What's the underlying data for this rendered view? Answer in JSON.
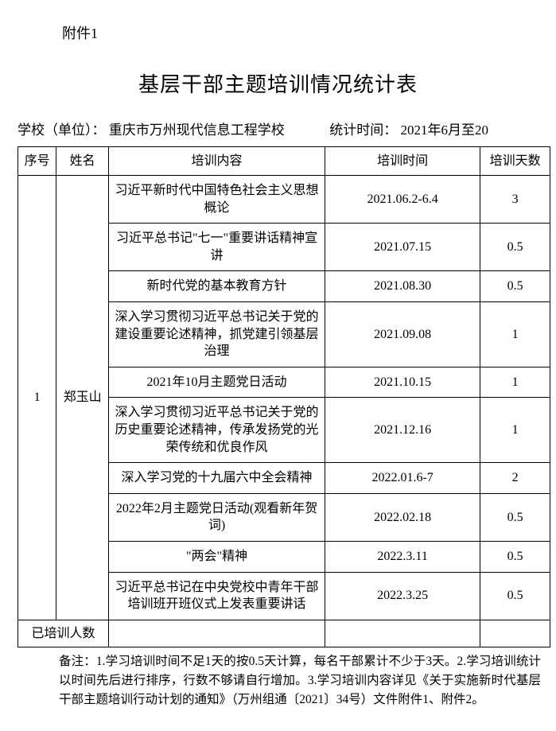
{
  "attachment_label": "附件1",
  "title": "基层干部主题培训情况统计表",
  "meta": {
    "school_label": "学校（单位）：",
    "school_value": "重庆市万州现代信息工程学校",
    "stat_time_label": "统计时间：",
    "stat_time_value": "2021年6月至20"
  },
  "table": {
    "headers": {
      "seq": "序号",
      "name": "姓名",
      "content": "培训内容",
      "time": "培训时间",
      "days": "培训天数"
    },
    "seq_value": "1",
    "name_value": "郑玉山",
    "rows": [
      {
        "content": "习近平新时代中国特色社会主义思想概论",
        "time": "2021.06.2-6.4",
        "days": "3"
      },
      {
        "content": "习近平总书记\"七一\"重要讲话精神宣讲",
        "time": "2021.07.15",
        "days": "0.5"
      },
      {
        "content": "新时代党的基本教育方针",
        "time": "2021.08.30",
        "days": "0.5"
      },
      {
        "content": "深入学习贯彻习近平总书记关于党的建设重要论述精神，抓党建引领基层治理",
        "time": "2021.09.08",
        "days": "1"
      },
      {
        "content": "2021年10月主题党日活动",
        "time": "2021.10.15",
        "days": "1"
      },
      {
        "content": "深入学习贯彻习近平总书记关于党的历史重要论述精神，传承发扬党的光荣传统和优良作风",
        "time": "2021.12.16",
        "days": "1"
      },
      {
        "content": "深入学习党的十九届六中全会精神",
        "time": "2022.01.6-7",
        "days": "2"
      },
      {
        "content": "2022年2月主题党日活动(观看新年贺词)",
        "time": "2022.02.18",
        "days": "0.5"
      },
      {
        "content": "\"两会\"精神",
        "time": "2022.3.11",
        "days": "0.5"
      },
      {
        "content": "习近平总书记在中央党校中青年干部培训班开班仪式上发表重要讲话",
        "time": "2022.3.25",
        "days": "0.5"
      }
    ],
    "trained_count_label": "已培训人数"
  },
  "notes": {
    "label": "备注：",
    "text": "1.学习培训时间不足1天的按0.5天计算，每名干部累计不少于3天。2.学习培训统计以时间先后进行排序，行数不够请自行增加。3.学习培训内容详见《关于实施新时代基层干部主题培训行动计划的通知》（万州组通〔2021〕34号）文件附件1、附件2。"
  }
}
